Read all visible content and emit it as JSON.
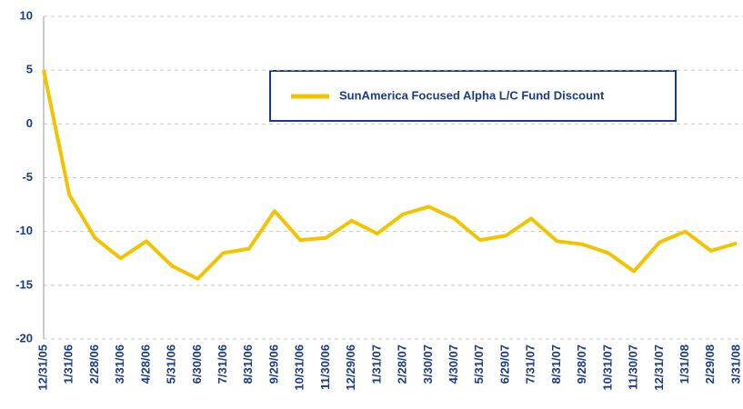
{
  "chart_data": {
    "type": "line",
    "categories": [
      "12/31/05",
      "1/31/06",
      "2/28/06",
      "3/31/06",
      "4/28/06",
      "5/31/06",
      "6/30/06",
      "7/31/06",
      "8/31/06",
      "9/29/06",
      "10/31/06",
      "11/30/06",
      "12/29/06",
      "1/31/07",
      "2/28/07",
      "3/30/07",
      "4/30/07",
      "5/31/07",
      "6/29/07",
      "7/31/07",
      "8/31/07",
      "9/28/07",
      "10/31/07",
      "11/30/07",
      "12/31/07",
      "1/31/08",
      "2/29/08",
      "3/31/08"
    ],
    "series": [
      {
        "name": "SunAmerica Focused Alpha L/C Fund Discount",
        "color": "#f2c400",
        "values": [
          5,
          -6.6,
          -10.6,
          -12.5,
          -10.9,
          -13.2,
          -14.4,
          -12,
          -11.6,
          -8.1,
          -10.8,
          -10.6,
          -9,
          -10.2,
          -8.4,
          -7.7,
          -8.8,
          -10.8,
          -10.4,
          -8.8,
          -10.9,
          -11.2,
          -12,
          -13.7,
          -11,
          -10,
          -11.8,
          -11.1
        ]
      }
    ],
    "ylim": [
      -20,
      10
    ],
    "yticks": [
      -20,
      -15,
      -10,
      -5,
      0,
      5,
      10
    ],
    "grid": true
  }
}
